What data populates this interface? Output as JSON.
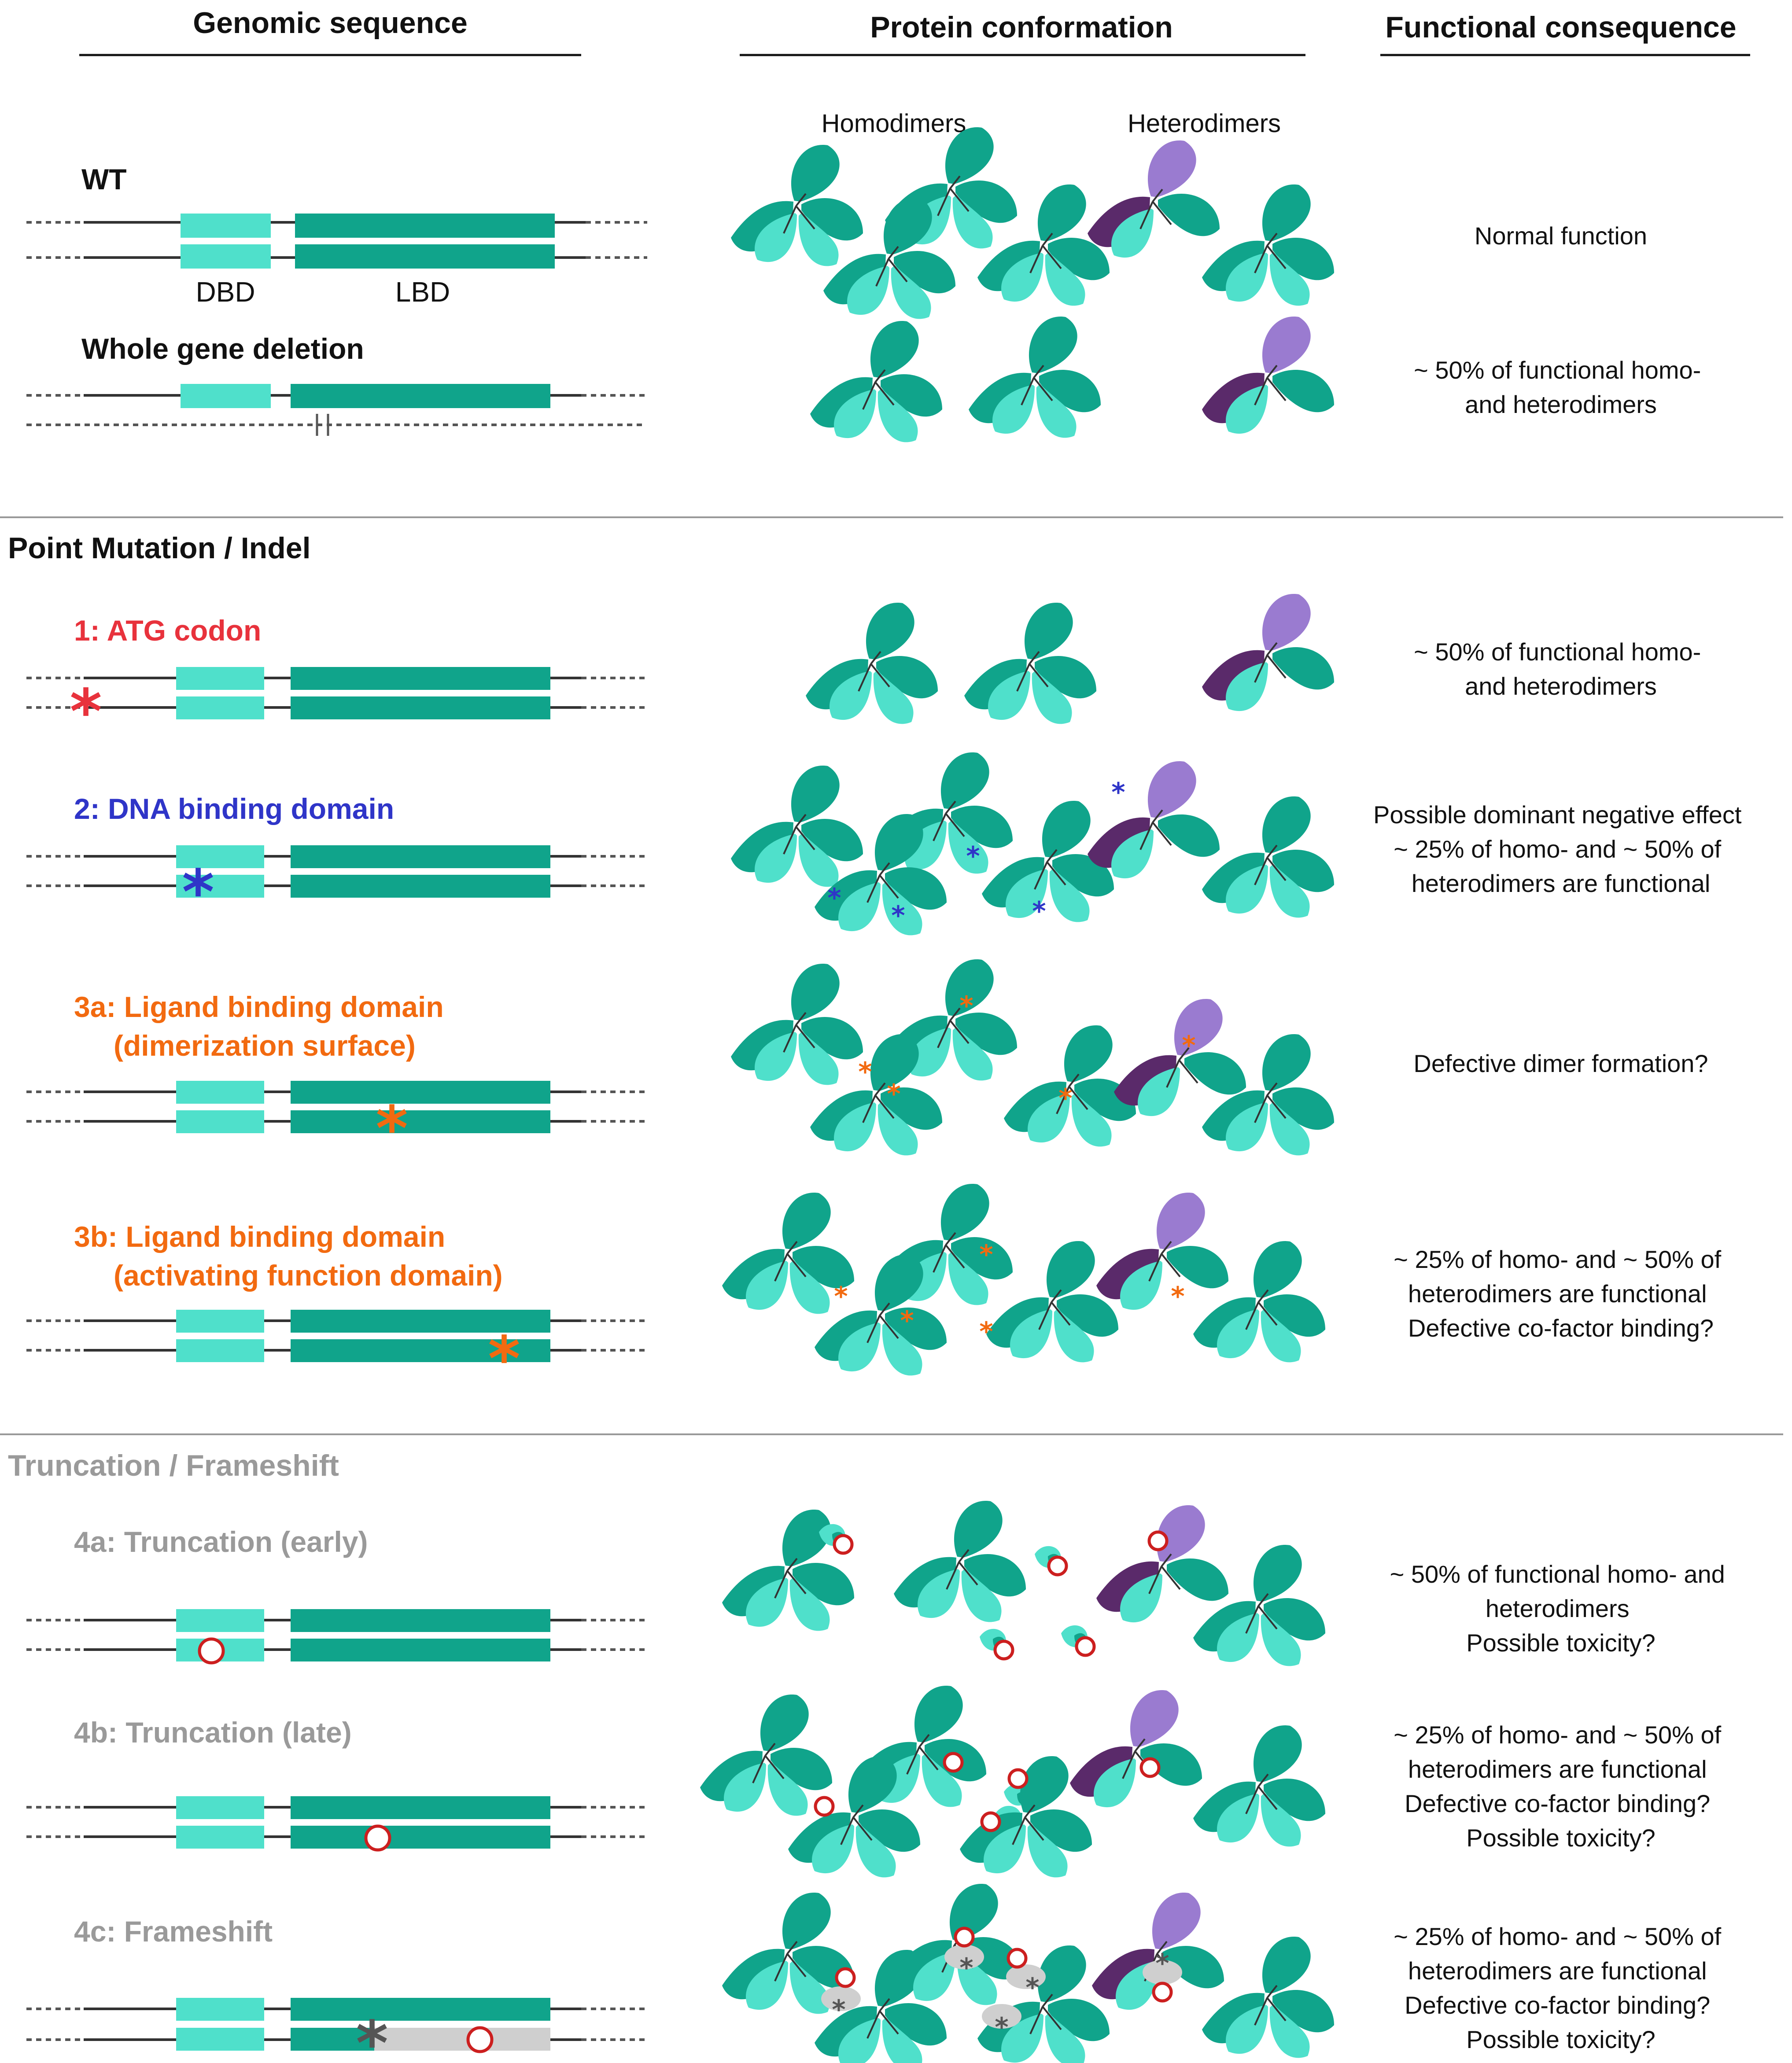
{
  "colors": {
    "dbd": "#4fe0cb",
    "lbd": "#10a48b",
    "hetero_dark": "#5a2a6a",
    "hetero_light": "#9a7bd0",
    "red": "#e8323c",
    "blue": "#2f35c8",
    "orange": "#f26a10",
    "gray_text": "#9a9a9a",
    "gray_fill": "#cfcfcf",
    "trunc_ring": "#cc1f1f"
  },
  "headers": {
    "genomic": "Genomic sequence",
    "protein": "Protein conformation",
    "functional": "Functional consequence",
    "homodimers": "Homodimers",
    "heterodimers": "Heterodimers"
  },
  "domains": {
    "dbd": "DBD",
    "lbd": "LBD"
  },
  "sections": {
    "point": "Point Mutation / Indel",
    "truncation": "Truncation / Frameshift"
  },
  "rows": [
    {
      "id": "wt",
      "title": "WT",
      "consequence": [
        "Normal function"
      ]
    },
    {
      "id": "del",
      "title": "Whole gene deletion",
      "consequence": [
        "~ 50% of functional homo-",
        "and heterodimers"
      ]
    },
    {
      "id": "atg",
      "title": "1: ATG codon",
      "consequence": [
        "~ 50% of functional homo-",
        "and heterodimers"
      ]
    },
    {
      "id": "dbd",
      "title": "2: DNA binding domain",
      "consequence": [
        "Possible dominant negative effect",
        "~ 25% of homo- and ~ 50% of",
        "heterodimers are functional"
      ]
    },
    {
      "id": "lbd3a",
      "title": "3a: Ligand binding domain",
      "title2": "(dimerization surface)",
      "consequence": [
        "Defective dimer formation?"
      ]
    },
    {
      "id": "lbd3b",
      "title": "3b: Ligand binding domain",
      "title2": "(activating function domain)",
      "consequence": [
        "~ 25% of homo- and ~ 50% of",
        "heterodimers are functional",
        "Defective co-factor binding?"
      ]
    },
    {
      "id": "t4a",
      "title": "4a: Truncation (early)",
      "consequence": [
        "~ 50% of functional homo- and",
        "heterodimers",
        "Possible toxicity?"
      ]
    },
    {
      "id": "t4b",
      "title": "4b: Truncation (late)",
      "consequence": [
        "~ 25% of homo- and ~ 50% of",
        "heterodimers are functional",
        "Defective co-factor binding?",
        "Possible toxicity?"
      ]
    },
    {
      "id": "t4c",
      "title": "4c: Frameshift",
      "consequence": [
        "~ 25% of homo- and ~ 50% of",
        "heterodimers are functional",
        "Defective co-factor binding?",
        "Possible toxicity?"
      ]
    }
  ]
}
